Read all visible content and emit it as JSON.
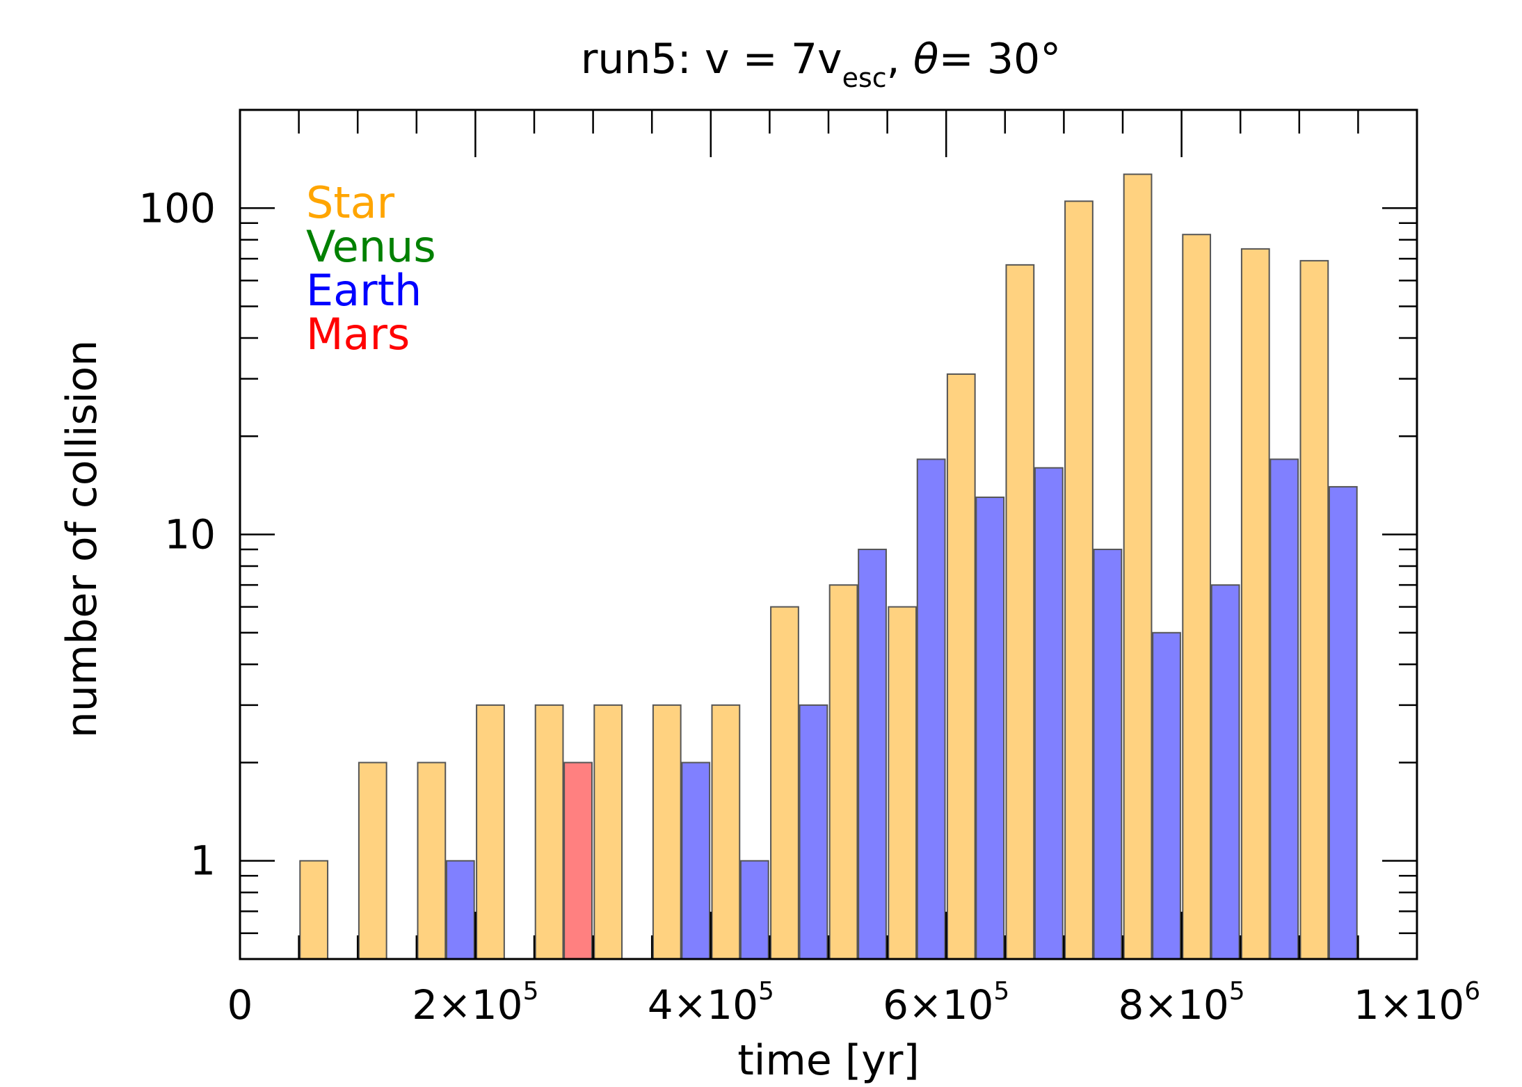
{
  "chart_data": {
    "type": "bar",
    "title": {
      "prefix": "run5: v = 7v",
      "subscript": "esc",
      "suffix": ", ",
      "theta": "θ",
      "rest": "= 30°"
    },
    "xlabel": "time [yr]",
    "ylabel": "number of collision",
    "xlim": [
      0,
      1000000
    ],
    "ylim": [
      0.5,
      200
    ],
    "yscale": "log",
    "grid": false,
    "legend_position": "top-left",
    "bin_width": 50000,
    "x_ticks": [
      {
        "value": 0,
        "mantissa": "0",
        "exp": ""
      },
      {
        "value": 200000,
        "mantissa": "2×10",
        "exp": "5"
      },
      {
        "value": 400000,
        "mantissa": "4×10",
        "exp": "5"
      },
      {
        "value": 600000,
        "mantissa": "6×10",
        "exp": "5"
      },
      {
        "value": 800000,
        "mantissa": "8×10",
        "exp": "5"
      },
      {
        "value": 1000000,
        "mantissa": "1×10",
        "exp": "6"
      }
    ],
    "y_ticks": [
      {
        "value": 1,
        "label": "1"
      },
      {
        "value": 10,
        "label": "10"
      },
      {
        "value": 100,
        "label": "100"
      }
    ],
    "series": [
      {
        "name": "Star",
        "color": "#ffa500",
        "fill": "#ffd280",
        "x": [
          75000,
          125000,
          175000,
          225000,
          275000,
          325000,
          375000,
          425000,
          475000,
          525000,
          575000,
          625000,
          675000,
          725000,
          775000,
          825000,
          875000,
          925000
        ],
        "values": [
          1,
          2,
          2,
          3,
          3,
          3,
          3,
          3,
          6,
          7,
          6,
          31,
          67,
          105,
          127,
          83,
          75,
          69
        ]
      },
      {
        "name": "Venus",
        "color": "#008000",
        "fill": "#80c080",
        "x": [],
        "values": []
      },
      {
        "name": "Earth",
        "color": "#0000ff",
        "fill": "#8080ff",
        "x": [
          175000,
          275000,
          375000,
          425000,
          475000,
          525000,
          575000,
          625000,
          675000,
          725000,
          775000,
          825000,
          875000,
          925000
        ],
        "values": [
          1,
          2,
          2,
          1,
          3,
          9,
          17,
          13,
          16,
          9,
          5,
          7,
          17,
          14
        ]
      },
      {
        "name": "Mars",
        "color": "#ff0000",
        "fill": "#ff8080",
        "x": [
          275000
        ],
        "values": [
          2
        ]
      }
    ]
  }
}
